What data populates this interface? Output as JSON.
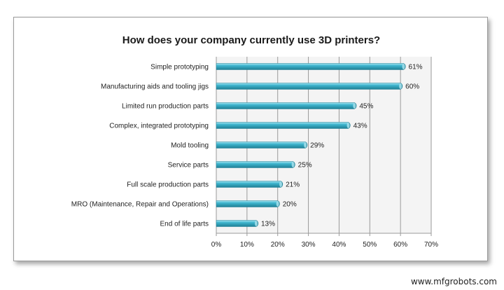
{
  "chart_data": {
    "type": "bar",
    "orientation": "horizontal",
    "title": "How does your company currently use 3D printers?",
    "xlabel": "",
    "ylabel": "",
    "categories": [
      "Simple prototyping",
      "Manufacturing aids and tooling jigs",
      "Limited run production parts",
      "Complex, integrated prototyping",
      "Mold tooling",
      "Service parts",
      "Full scale production parts",
      "MRO (Maintenance, Repair and Operations)",
      "End of life parts"
    ],
    "values": [
      61,
      60,
      45,
      43,
      29,
      25,
      21,
      20,
      13
    ],
    "value_labels": [
      "61%",
      "60%",
      "45%",
      "43%",
      "29%",
      "25%",
      "21%",
      "20%",
      "13%"
    ],
    "xlim": [
      0,
      70
    ],
    "x_ticks": [
      0,
      10,
      20,
      30,
      40,
      50,
      60,
      70
    ],
    "x_tick_labels": [
      "0%",
      "10%",
      "20%",
      "30%",
      "40%",
      "50%",
      "60%",
      "70%"
    ],
    "grid": true,
    "legend": "none",
    "colors": {
      "bar": "#3fb6cf",
      "bar_highlight": "#a9e4f0",
      "bar_shadow": "#1f7f94",
      "grid": "#9a9a9a",
      "plot_bg": "#f4f4f4"
    }
  },
  "watermark": "www.mfgrobots.com"
}
